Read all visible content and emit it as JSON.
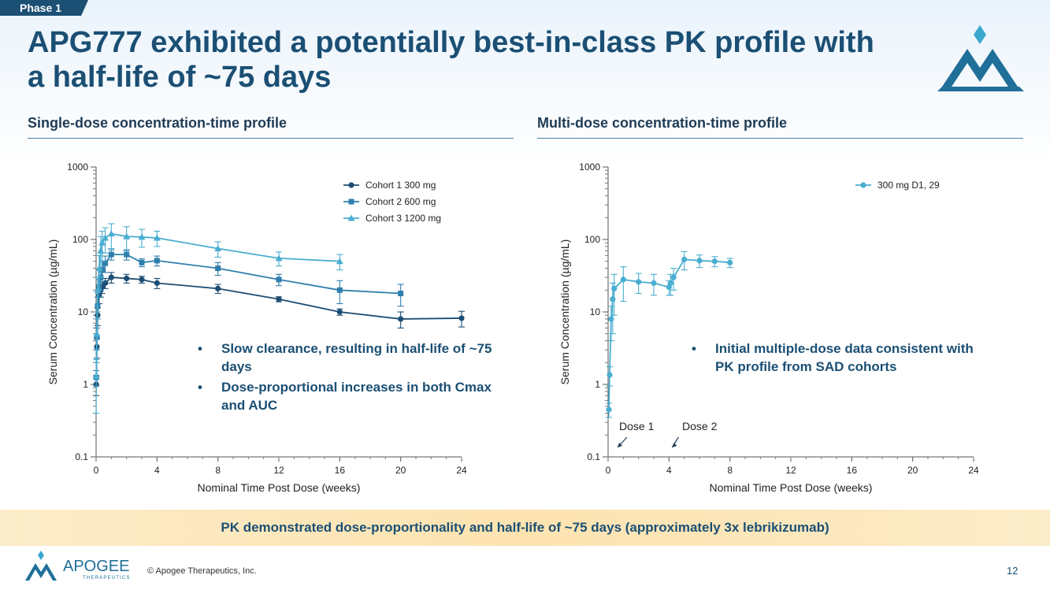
{
  "header": {
    "phase_tag": "Phase 1",
    "title": "APG777 exhibited a potentially best-in-class PK profile with a half-life of ~75 days"
  },
  "sections": {
    "left_title": "Single-dose concentration-time profile",
    "right_title": "Multi-dose concentration-time profile"
  },
  "chart_data": [
    {
      "type": "line",
      "title": "",
      "xlabel": "Nominal Time Post Dose (weeks)",
      "ylabel": "Serum Concentration (µg/mL)",
      "yscale": "log",
      "xlim": [
        0,
        24
      ],
      "ylim": [
        0.1,
        1000
      ],
      "x_ticks": [
        "0",
        "4",
        "8",
        "12",
        "16",
        "20",
        "24"
      ],
      "y_ticks": [
        "0.1",
        "1",
        "10",
        "100",
        "1000"
      ],
      "legend_position": "top-right",
      "series": [
        {
          "name": "Cohort 1 300 mg",
          "marker": "circle",
          "color": "#1d4d73",
          "x": [
            0.01,
            0.05,
            0.1,
            0.2,
            0.3,
            0.4,
            0.6,
            1,
            2,
            3,
            4,
            8,
            12,
            16,
            20,
            24
          ],
          "y": [
            1,
            3.3,
            9,
            17,
            20,
            22,
            25,
            30,
            29,
            28,
            25,
            21,
            15,
            10,
            8,
            8.2
          ],
          "err": [
            0.3,
            1,
            2.5,
            4,
            4,
            4,
            4,
            5,
            4,
            3,
            4,
            3,
            1.2,
            1,
            2,
            2
          ]
        },
        {
          "name": "Cohort 2 600 mg",
          "marker": "square",
          "color": "#2f7fad",
          "x": [
            0.01,
            0.05,
            0.1,
            0.2,
            0.3,
            0.4,
            0.6,
            1,
            2,
            3,
            4,
            8,
            12,
            16,
            20
          ],
          "y": [
            1.25,
            4.5,
            12,
            22,
            30,
            38,
            47,
            62,
            62,
            48,
            51,
            40,
            28,
            20,
            18
          ],
          "err": [
            0.3,
            1.5,
            4,
            6,
            10,
            12,
            12,
            10,
            10,
            6,
            8,
            8,
            5,
            7,
            6
          ]
        },
        {
          "name": "Cohort 3 1200 mg",
          "marker": "triangle",
          "color": "#4aaed0",
          "x": [
            0.01,
            0.05,
            0.1,
            0.2,
            0.3,
            0.4,
            0.6,
            1,
            2,
            3,
            4,
            8,
            12,
            16
          ],
          "y": [
            1.3,
            5,
            20,
            40,
            70,
            90,
            105,
            120,
            110,
            108,
            105,
            75,
            55,
            50
          ],
          "err": [
            0.9,
            3,
            10,
            20,
            40,
            40,
            40,
            45,
            40,
            30,
            25,
            18,
            12,
            12
          ]
        }
      ]
    },
    {
      "type": "line",
      "title": "",
      "xlabel": "Nominal Time Post Dose (weeks)",
      "ylabel": "Serum Concentration (µg/mL)",
      "yscale": "log",
      "xlim": [
        0,
        24
      ],
      "ylim": [
        0.1,
        1000
      ],
      "x_ticks": [
        "0",
        "4",
        "8",
        "12",
        "16",
        "20",
        "24"
      ],
      "y_ticks": [
        "0.1",
        "1",
        "10",
        "100",
        "1000"
      ],
      "legend_position": "top-right",
      "series": [
        {
          "name": "300 mg D1, 29",
          "marker": "circle",
          "color": "#4aaed0",
          "x": [
            0.05,
            0.1,
            0.2,
            0.3,
            0.4,
            1,
            2,
            3,
            4,
            4.1,
            4.3,
            5,
            6,
            7,
            8
          ],
          "y": [
            0.45,
            1.35,
            8,
            15,
            21,
            28,
            26,
            25,
            22,
            25,
            30,
            53,
            51,
            50,
            48
          ],
          "err": [
            0.1,
            0.4,
            4,
            10,
            12,
            14,
            8,
            8,
            5,
            8,
            10,
            15,
            10,
            8,
            7
          ]
        }
      ],
      "annotations": [
        {
          "label": "Dose 1",
          "x": 0
        },
        {
          "label": "Dose 2",
          "x": 4
        }
      ]
    }
  ],
  "bullets_left": [
    "Slow clearance, resulting in half-life of ~75 days",
    "Dose-proportional increases in both Cmax and AUC"
  ],
  "bullets_right": [
    "Initial multiple-dose data consistent with PK profile from SAD cohorts"
  ],
  "banner": "PK demonstrated dose-proportionality and half-life of ~75 days (approximately 3x lebrikizumab)",
  "footer": {
    "company": "APOGEE",
    "company_sub": "THERAPEUTICS",
    "copyright": "© Apogee Therapeutics, Inc.",
    "page_number": "12"
  },
  "colors": {
    "primary": "#1b4f74",
    "accent_light": "#4aaed0",
    "banner": "#fde3b0"
  }
}
